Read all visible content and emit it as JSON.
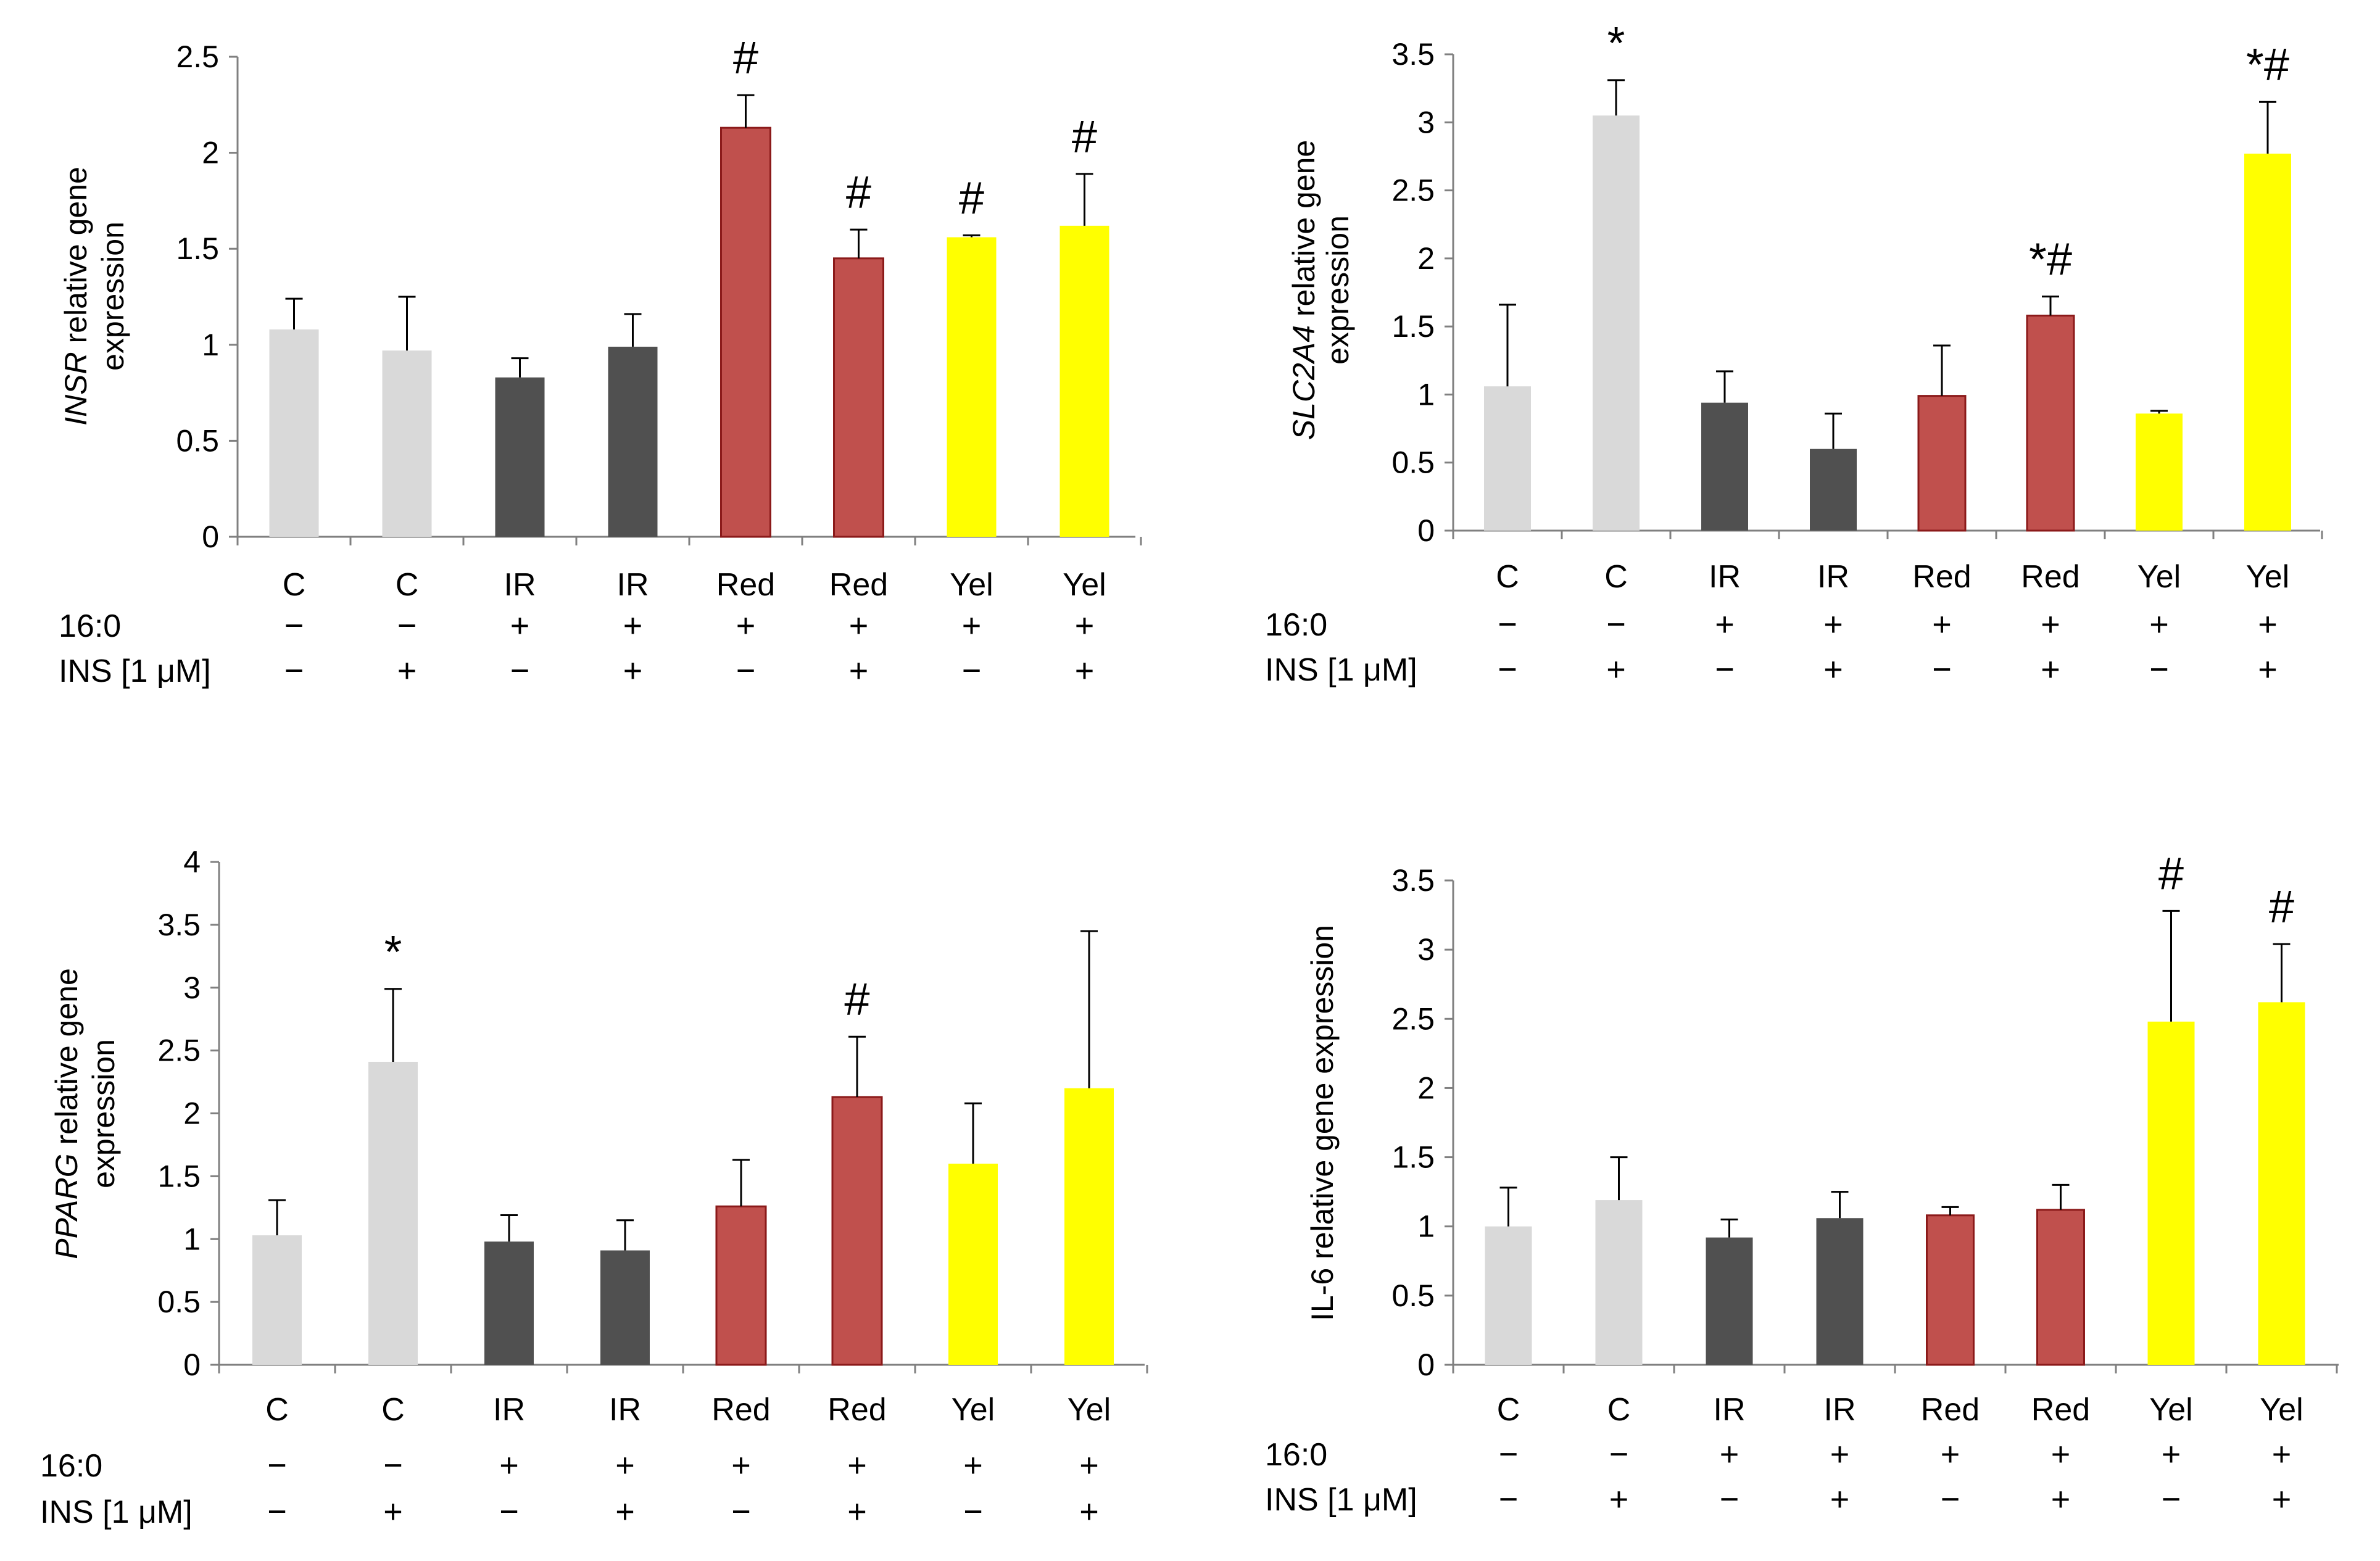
{
  "treatment_labels": {
    "fa": "16:0",
    "ins": "INS [1 μM]"
  },
  "colors": {
    "C": "#d9d9d9",
    "IR": "#505050",
    "Red": "#c0504d",
    "Yel": "#ffff00",
    "red_edge": "#8b1a1a",
    "errbar": "#000000",
    "axis": "#808080"
  },
  "chart_data": [
    {
      "type": "bar",
      "id": "insr",
      "ylabel_italic": "INSR",
      "ylabel_rest": " relative gene",
      "ylabel_line2": "expression",
      "ylim": [
        0,
        2.5
      ],
      "yticks": [
        "0",
        "0.5",
        "1",
        "1.5",
        "2",
        "2.5"
      ],
      "categories": [
        "C",
        "C",
        "IR",
        "IR",
        "Red",
        "Red",
        "Yel",
        "Yel"
      ],
      "groups": [
        "C",
        "C",
        "IR",
        "IR",
        "Red",
        "Red",
        "Yel",
        "Yel"
      ],
      "values": [
        1.08,
        0.97,
        0.83,
        0.99,
        2.13,
        1.45,
        1.56,
        1.62
      ],
      "errors": [
        0.16,
        0.28,
        0.1,
        0.17,
        0.17,
        0.15,
        0.01,
        0.27
      ],
      "fa": [
        "−",
        "−",
        "+",
        "+",
        "+",
        "+",
        "+",
        "+"
      ],
      "ins": [
        "−",
        "+",
        "−",
        "+",
        "−",
        "+",
        "−",
        "+"
      ],
      "significance": [
        "",
        "",
        "",
        "",
        "#",
        "#",
        "#",
        "#"
      ]
    },
    {
      "type": "bar",
      "id": "slc2a4",
      "ylabel_italic": "SLC2A4",
      "ylabel_rest": " relative gene",
      "ylabel_line2": "expression",
      "ylim": [
        0,
        3.5
      ],
      "yticks": [
        "0",
        "0.5",
        "1",
        "1.5",
        "2",
        "2.5",
        "3",
        "3.5"
      ],
      "categories": [
        "C",
        "C",
        "IR",
        "IR",
        "Red",
        "Red",
        "Yel",
        "Yel"
      ],
      "groups": [
        "C",
        "C",
        "IR",
        "IR",
        "Red",
        "Red",
        "Yel",
        "Yel"
      ],
      "values": [
        1.06,
        3.05,
        0.94,
        0.6,
        0.99,
        1.58,
        0.86,
        2.77
      ],
      "errors": [
        0.6,
        0.26,
        0.23,
        0.26,
        0.37,
        0.14,
        0.02,
        0.38
      ],
      "fa": [
        "−",
        "−",
        "+",
        "+",
        "+",
        "+",
        "+",
        "+"
      ],
      "ins": [
        "−",
        "+",
        "−",
        "+",
        "−",
        "+",
        "−",
        "+"
      ],
      "significance": [
        "",
        "*",
        "",
        "",
        "",
        "*#",
        "",
        "*#"
      ]
    },
    {
      "type": "bar",
      "id": "pparg",
      "ylabel_italic": "PPARG",
      "ylabel_rest": " relative gene",
      "ylabel_line2": "expression",
      "ylim": [
        0,
        4
      ],
      "yticks": [
        "0",
        "0.5",
        "1",
        "1.5",
        "2",
        "2.5",
        "3",
        "3.5",
        "4"
      ],
      "categories": [
        "C",
        "C",
        "IR",
        "IR",
        "Red",
        "Red",
        "Yel",
        "Yel"
      ],
      "groups": [
        "C",
        "C",
        "IR",
        "IR",
        "Red",
        "Red",
        "Yel",
        "Yel"
      ],
      "values": [
        1.03,
        2.41,
        0.98,
        0.91,
        1.26,
        2.13,
        1.6,
        2.2
      ],
      "errors": [
        0.28,
        0.58,
        0.21,
        0.24,
        0.37,
        0.48,
        0.48,
        1.25
      ],
      "fa": [
        "−",
        "−",
        "+",
        "+",
        "+",
        "+",
        "+",
        "+"
      ],
      "ins": [
        "−",
        "+",
        "−",
        "+",
        "−",
        "+",
        "−",
        "+"
      ],
      "significance": [
        "",
        "*",
        "",
        "",
        "",
        "#",
        "",
        ""
      ]
    },
    {
      "type": "bar",
      "id": "il6",
      "ylabel_italic": "",
      "ylabel_rest": "IL-6 relative gene expression",
      "ylabel_line2": "",
      "ylim": [
        0,
        3.5
      ],
      "yticks": [
        "0",
        "0.5",
        "1",
        "1.5",
        "2",
        "2.5",
        "3",
        "3.5"
      ],
      "categories": [
        "C",
        "C",
        "IR",
        "IR",
        "Red",
        "Red",
        "Yel",
        "Yel"
      ],
      "groups": [
        "C",
        "C",
        "IR",
        "IR",
        "Red",
        "Red",
        "Yel",
        "Yel"
      ],
      "values": [
        1.0,
        1.19,
        0.92,
        1.06,
        1.08,
        1.12,
        2.48,
        2.62
      ],
      "errors": [
        0.28,
        0.31,
        0.13,
        0.19,
        0.06,
        0.18,
        0.8,
        0.42
      ],
      "fa": [
        "−",
        "−",
        "+",
        "+",
        "+",
        "+",
        "+",
        "+"
      ],
      "ins": [
        "−",
        "+",
        "−",
        "+",
        "−",
        "+",
        "−",
        "+"
      ],
      "significance": [
        "",
        "",
        "",
        "",
        "",
        "",
        "#",
        "#"
      ]
    }
  ]
}
